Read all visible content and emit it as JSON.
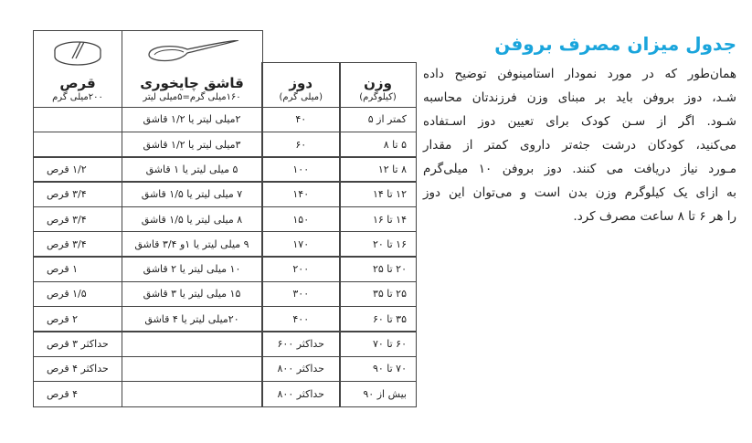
{
  "article": {
    "title": "جدول میزان مصرف بروفن",
    "lines": [
      "همان‌طور که در مورد نمودار استامینوفن توضیح داده",
      "شـد، دوز بروفن باید بر مبنای وزن فرزندتان محاسبه",
      "شـود. اگر از سـن کودک برای تعیین دوز اسـتفاده",
      "می‌کنید، کودکان درشت جثه‌تر داروی کمتر از مقدار",
      "مـورد نیاز دریافت می کنند. دوز بروفن ۱۰ میلی‌گرم",
      "به ازای یک کیلوگرم وزن بدن است و می‌توان این دوز",
      "را هر ۶ تا ۸ ساعت مصرف کرد."
    ]
  },
  "table": {
    "headers": {
      "weight": {
        "title": "وزن",
        "sub": "(کیلوگرم)"
      },
      "dose": {
        "title": "دوز",
        "sub": "(میلی گرم)"
      },
      "spoon": {
        "title": "قاشق چایخوری",
        "sub": "۱۶۰میلی گرم=۵میلی لیتر",
        "icon": "spoon-icon"
      },
      "tablet": {
        "title": "قرص",
        "sub": "۲۰۰میلی گرم",
        "icon": "pill-icon"
      }
    },
    "rows": [
      {
        "weight": "کمتر از ۵",
        "dose": "۴۰",
        "spoon": "۲میلی لیتر یا ۱/۲ قاشق",
        "tablet": ""
      },
      {
        "weight": "۵ تا ۸",
        "dose": "۶۰",
        "spoon": "۳میلی لیتر یا ۱/۲ قاشق",
        "tablet": ""
      },
      {
        "weight": "۸ تا ۱۲",
        "dose": "۱۰۰",
        "spoon": "۵ میلی لیتر یا ۱ قاشق",
        "tablet": "۱/۲ قرص"
      },
      {
        "weight": "۱۲ تا ۱۴",
        "dose": "۱۴۰",
        "spoon": "۷ میلی لیتر یا ۱/۵ قاشق",
        "tablet": "۳/۴ قرص"
      },
      {
        "weight": "۱۴ تا ۱۶",
        "dose": "۱۵۰",
        "spoon": "۸ میلی لیتر یا ۱/۵ قاشق",
        "tablet": "۳/۴ قرص"
      },
      {
        "weight": "۱۶ تا ۲۰",
        "dose": "۱۷۰",
        "spoon": "۹ میلی لیتر یا ۱و ۳/۴ قاشق",
        "tablet": "۳/۴ قرص"
      },
      {
        "weight": "۲۰ تا ۲۵",
        "dose": "۲۰۰",
        "spoon": "۱۰ میلی لیتر یا ۲ قاشق",
        "tablet": "۱ قرص"
      },
      {
        "weight": "۲۵ تا ۳۵",
        "dose": "۳۰۰",
        "spoon": "۱۵ میلی لیتر یا ۳ قاشق",
        "tablet": "۱/۵ قرص"
      },
      {
        "weight": "۳۵ تا ۶۰",
        "dose": "۴۰۰",
        "spoon": "۲۰میلی لیتر یا ۴ قاشق",
        "tablet": "۲ قرص"
      },
      {
        "weight": "۶۰ تا ۷۰",
        "dose": "حداکثر ۶۰۰",
        "spoon": "",
        "tablet": "حداکثر ۳ قرص"
      },
      {
        "weight": "۷۰ تا ۹۰",
        "dose": "حداکثر ۸۰۰",
        "spoon": "",
        "tablet": "حداکثر ۴ قرص"
      },
      {
        "weight": "بیش از ۹۰",
        "dose": "حداکثر ۸۰۰",
        "spoon": "",
        "tablet": "۴ قرص"
      }
    ]
  }
}
